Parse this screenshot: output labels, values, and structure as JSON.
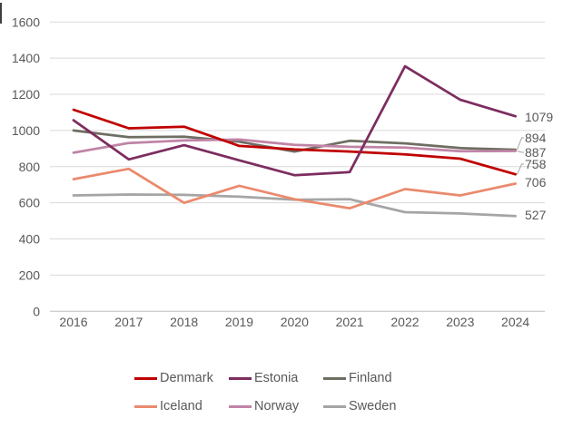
{
  "chart_data": {
    "type": "line",
    "title": "",
    "x": [
      "2016",
      "2017",
      "2018",
      "2019",
      "2020",
      "2021",
      "2022",
      "2023",
      "2024"
    ],
    "series": [
      {
        "name": "Denmark",
        "color": "#C00000",
        "values": [
          1115,
          1012,
          1021,
          915,
          896,
          884,
          868,
          844,
          758
        ]
      },
      {
        "name": "Estonia",
        "color": "#7D2D5F",
        "values": [
          1057,
          840,
          919,
          835,
          753,
          770,
          1355,
          1170,
          1079
        ]
      },
      {
        "name": "Finland",
        "color": "#6F6E63",
        "values": [
          1000,
          963,
          966,
          938,
          884,
          943,
          929,
          903,
          894
        ]
      },
      {
        "name": "Iceland",
        "color": "#EA8A6E",
        "values": [
          731,
          788,
          600,
          694,
          620,
          570,
          676,
          641,
          706
        ]
      },
      {
        "name": "Norway",
        "color": "#C084A6",
        "values": [
          877,
          931,
          945,
          950,
          921,
          910,
          906,
          886,
          887
        ]
      },
      {
        "name": "Sweden",
        "color": "#A5A5A5",
        "values": [
          641,
          646,
          644,
          634,
          617,
          620,
          548,
          541,
          527
        ]
      }
    ],
    "end_labels": [
      {
        "series": "Estonia",
        "text": "1079",
        "y": 129,
        "leader": false
      },
      {
        "series": "Finland",
        "text": "894",
        "y": 152,
        "leader": true
      },
      {
        "series": "Norway",
        "text": "887",
        "y": 168,
        "leader": true
      },
      {
        "series": "Denmark",
        "text": "758",
        "y": 181,
        "leader": true
      },
      {
        "series": "Iceland",
        "text": "706",
        "y": 201,
        "leader": false
      },
      {
        "series": "Sweden",
        "text": "527",
        "y": 237,
        "leader": false
      }
    ],
    "y_axis": {
      "min": 0,
      "max": 1600,
      "step": 200,
      "tick_labels": [
        "0",
        "200",
        "400",
        "600",
        "800",
        "1000",
        "1200",
        "1400",
        "1600"
      ]
    },
    "legend": {
      "position": "bottom",
      "rows": [
        [
          "Denmark",
          "Estonia",
          "Finland"
        ],
        [
          "Iceland",
          "Norway",
          "Sweden"
        ]
      ]
    },
    "grid": true,
    "draw_order": [
      "Sweden",
      "Iceland",
      "Finland",
      "Norway",
      "Denmark",
      "Estonia"
    ],
    "colors": {
      "grid": "#D9D9D9",
      "axis_line": "#BFBFBF",
      "axis_text": "#595959",
      "leader_line": "#A6A6A6"
    }
  }
}
